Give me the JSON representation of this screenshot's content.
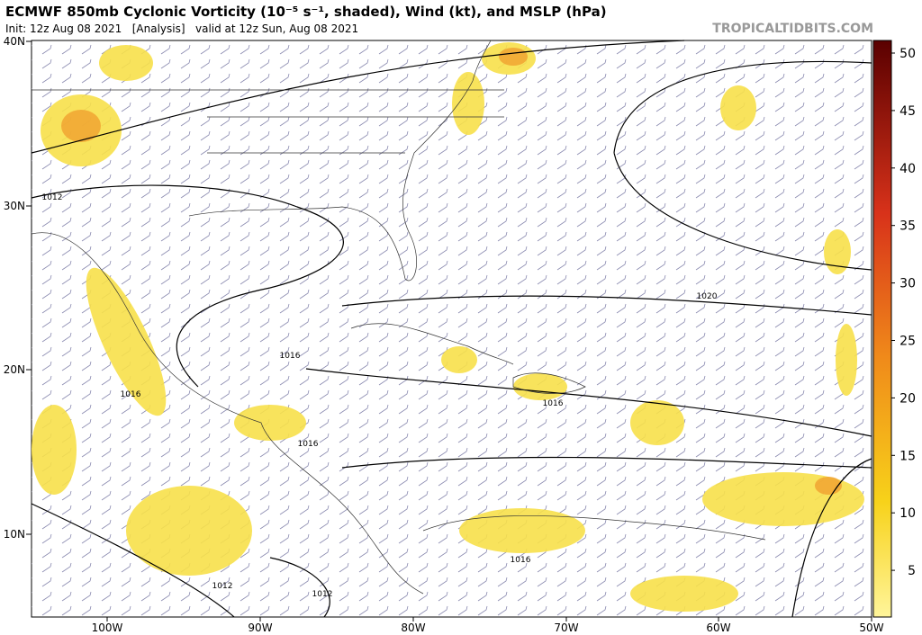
{
  "header": {
    "title": "ECMWF 850mb Cyclonic Vorticity (10⁻⁵ s⁻¹, shaded), Wind (kt), and MSLP (hPa)",
    "subtitle": "Init: 12z Aug 08 2021   [Analysis]   valid at 12z Sun, Aug 08 2021",
    "site": "TROPICALTIDBITS.COM"
  },
  "map": {
    "lat_labels": [
      "40N",
      "30N",
      "20N",
      "10N"
    ],
    "lon_labels": [
      "100W",
      "90W",
      "80W",
      "70W",
      "60W",
      "50W"
    ],
    "isobar_labels": [
      "1012",
      "1020",
      "1016",
      "1016",
      "1016",
      "1016",
      "1016",
      "1012",
      "1012"
    ]
  },
  "colorbar": {
    "ticks": [
      50,
      45,
      40,
      35,
      30,
      25,
      20,
      15,
      10,
      5
    ]
  }
}
